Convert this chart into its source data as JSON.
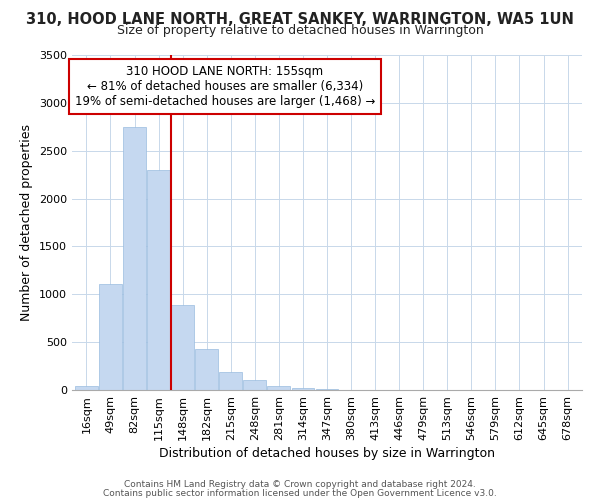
{
  "title": "310, HOOD LANE NORTH, GREAT SANKEY, WARRINGTON, WA5 1UN",
  "subtitle": "Size of property relative to detached houses in Warrington",
  "xlabel": "Distribution of detached houses by size in Warrington",
  "ylabel": "Number of detached properties",
  "bar_labels": [
    "16sqm",
    "49sqm",
    "82sqm",
    "115sqm",
    "148sqm",
    "182sqm",
    "215sqm",
    "248sqm",
    "281sqm",
    "314sqm",
    "347sqm",
    "380sqm",
    "413sqm",
    "446sqm",
    "479sqm",
    "513sqm",
    "546sqm",
    "579sqm",
    "612sqm",
    "645sqm",
    "678sqm"
  ],
  "bar_values": [
    45,
    1110,
    2750,
    2300,
    890,
    430,
    190,
    100,
    45,
    20,
    8,
    5,
    2,
    0,
    0,
    0,
    0,
    0,
    0,
    0,
    0
  ],
  "bar_color": "#c5d8f0",
  "bar_edge_color": "#9abce0",
  "vline_x": 3.5,
  "vline_color": "#cc0000",
  "annotation_title": "310 HOOD LANE NORTH: 155sqm",
  "annotation_line1": "← 81% of detached houses are smaller (6,334)",
  "annotation_line2": "19% of semi-detached houses are larger (1,468) →",
  "box_edge_color": "#cc0000",
  "ylim": [
    0,
    3500
  ],
  "yticks": [
    0,
    500,
    1000,
    1500,
    2000,
    2500,
    3000,
    3500
  ],
  "footer1": "Contains HM Land Registry data © Crown copyright and database right 2024.",
  "footer2": "Contains public sector information licensed under the Open Government Licence v3.0.",
  "bg_color": "#ffffff",
  "grid_color": "#c8d8ea",
  "title_fontsize": 10.5,
  "subtitle_fontsize": 9,
  "axis_label_fontsize": 9,
  "tick_fontsize": 8,
  "annotation_fontsize": 8.5,
  "footer_fontsize": 6.5
}
